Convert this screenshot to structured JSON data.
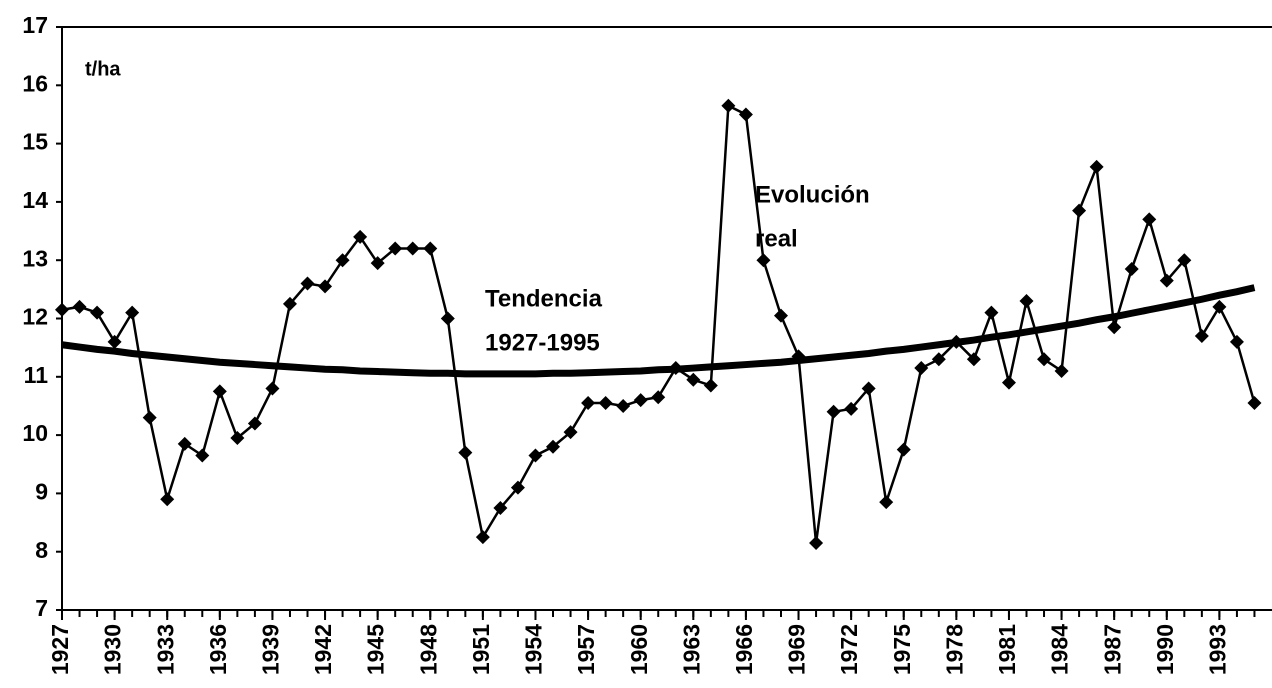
{
  "chart_data": {
    "type": "line",
    "y_unit": "t/ha",
    "x": [
      1927,
      1928,
      1929,
      1930,
      1931,
      1932,
      1933,
      1934,
      1935,
      1936,
      1937,
      1938,
      1939,
      1940,
      1941,
      1942,
      1943,
      1944,
      1945,
      1946,
      1947,
      1948,
      1949,
      1950,
      1951,
      1952,
      1953,
      1954,
      1955,
      1956,
      1957,
      1958,
      1959,
      1960,
      1961,
      1962,
      1963,
      1964,
      1965,
      1966,
      1967,
      1968,
      1969,
      1970,
      1971,
      1972,
      1973,
      1974,
      1975,
      1976,
      1977,
      1978,
      1979,
      1980,
      1981,
      1982,
      1983,
      1984,
      1985,
      1986,
      1987,
      1988,
      1989,
      1990,
      1991,
      1992,
      1993,
      1994,
      1995
    ],
    "series": [
      {
        "color": "#000000",
        "marker": "diamond",
        "values": [
          12.15,
          12.2,
          12.1,
          11.6,
          12.1,
          10.3,
          8.9,
          9.85,
          9.65,
          10.75,
          9.95,
          10.2,
          10.8,
          12.25,
          12.6,
          12.55,
          13.0,
          13.4,
          12.95,
          13.2,
          13.2,
          13.2,
          12.0,
          9.7,
          8.25,
          8.75,
          9.1,
          9.65,
          9.8,
          10.05,
          10.55,
          10.55,
          10.5,
          10.6,
          10.65,
          11.15,
          10.95,
          10.85,
          15.65,
          15.5,
          13.0,
          12.05,
          11.35,
          8.15,
          10.4,
          10.45,
          10.8,
          8.85,
          9.75,
          11.15,
          11.3,
          11.6,
          11.3,
          12.1,
          10.9,
          12.3,
          11.3,
          11.1,
          13.85,
          14.6,
          11.85,
          12.85,
          13.7,
          12.65,
          13.0,
          11.7,
          12.2,
          11.6,
          10.55
        ]
      },
      {
        "color": "#000000",
        "marker": "none",
        "values": [
          11.55,
          11.51,
          11.47,
          11.44,
          11.4,
          11.37,
          11.34,
          11.31,
          11.28,
          11.25,
          11.23,
          11.21,
          11.19,
          11.17,
          11.15,
          11.13,
          11.12,
          11.1,
          11.09,
          11.08,
          11.07,
          11.06,
          11.06,
          11.05,
          11.05,
          11.05,
          11.05,
          11.05,
          11.06,
          11.06,
          11.07,
          11.08,
          11.09,
          11.1,
          11.12,
          11.13,
          11.15,
          11.17,
          11.19,
          11.21,
          11.23,
          11.25,
          11.28,
          11.31,
          11.34,
          11.37,
          11.4,
          11.44,
          11.47,
          11.51,
          11.55,
          11.59,
          11.63,
          11.68,
          11.72,
          11.77,
          11.82,
          11.87,
          11.92,
          11.98,
          12.03,
          12.09,
          12.15,
          12.21,
          12.27,
          12.33,
          12.4,
          12.46,
          12.53
        ]
      }
    ],
    "annotations": [
      [
        "Evolución",
        "real"
      ],
      [
        "Tendencia",
        "1927-1995"
      ]
    ],
    "xlim": [
      1927,
      1996
    ],
    "xticks": [
      1927,
      1930,
      1933,
      1936,
      1939,
      1942,
      1945,
      1948,
      1951,
      1954,
      1957,
      1960,
      1963,
      1966,
      1969,
      1972,
      1975,
      1978,
      1981,
      1984,
      1987,
      1990,
      1993
    ],
    "ylim": [
      7,
      17
    ],
    "yticks": [
      7,
      8,
      9,
      10,
      11,
      12,
      13,
      14,
      15,
      16,
      17
    ]
  }
}
